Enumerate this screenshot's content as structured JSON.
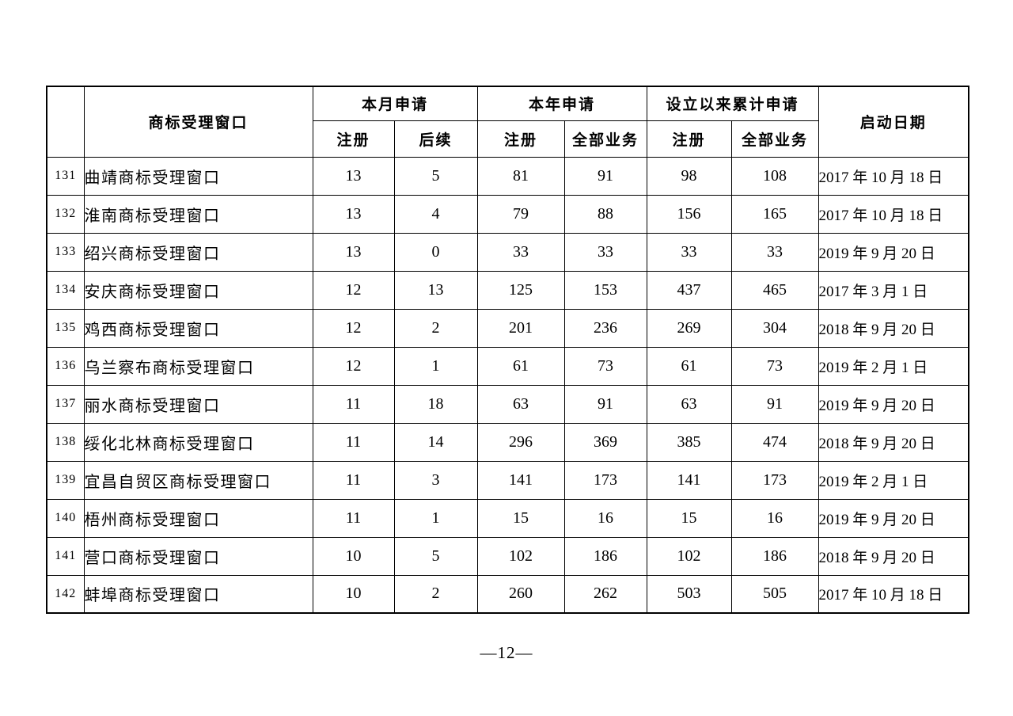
{
  "colors": {
    "background": "#ffffff",
    "border": "#000000",
    "text": "#000000"
  },
  "table": {
    "headers": {
      "window": "商标受理窗口",
      "month": "本月申请",
      "year": "本年申请",
      "cumulative": "设立以来累计申请",
      "start_date": "启动日期",
      "sub_register": "注册",
      "sub_follow": "后续",
      "sub_all": "全部业务"
    },
    "rows": [
      {
        "no": "131",
        "name": "曲靖商标受理窗口",
        "month_reg": "13",
        "month_follow": "5",
        "year_reg": "81",
        "year_all": "91",
        "cum_reg": "98",
        "cum_all": "108",
        "date": "2017 年 10 月 18 日"
      },
      {
        "no": "132",
        "name": "淮南商标受理窗口",
        "month_reg": "13",
        "month_follow": "4",
        "year_reg": "79",
        "year_all": "88",
        "cum_reg": "156",
        "cum_all": "165",
        "date": "2017 年 10 月 18 日"
      },
      {
        "no": "133",
        "name": "绍兴商标受理窗口",
        "month_reg": "13",
        "month_follow": "0",
        "year_reg": "33",
        "year_all": "33",
        "cum_reg": "33",
        "cum_all": "33",
        "date": "2019 年 9 月 20 日"
      },
      {
        "no": "134",
        "name": "安庆商标受理窗口",
        "month_reg": "12",
        "month_follow": "13",
        "year_reg": "125",
        "year_all": "153",
        "cum_reg": "437",
        "cum_all": "465",
        "date": "2017 年 3 月 1 日"
      },
      {
        "no": "135",
        "name": "鸡西商标受理窗口",
        "month_reg": "12",
        "month_follow": "2",
        "year_reg": "201",
        "year_all": "236",
        "cum_reg": "269",
        "cum_all": "304",
        "date": "2018 年 9 月 20 日"
      },
      {
        "no": "136",
        "name": "乌兰察布商标受理窗口",
        "month_reg": "12",
        "month_follow": "1",
        "year_reg": "61",
        "year_all": "73",
        "cum_reg": "61",
        "cum_all": "73",
        "date": "2019 年 2 月 1 日"
      },
      {
        "no": "137",
        "name": "丽水商标受理窗口",
        "month_reg": "11",
        "month_follow": "18",
        "year_reg": "63",
        "year_all": "91",
        "cum_reg": "63",
        "cum_all": "91",
        "date": "2019 年 9 月 20 日"
      },
      {
        "no": "138",
        "name": "绥化北林商标受理窗口",
        "month_reg": "11",
        "month_follow": "14",
        "year_reg": "296",
        "year_all": "369",
        "cum_reg": "385",
        "cum_all": "474",
        "date": "2018 年 9 月 20 日"
      },
      {
        "no": "139",
        "name": "宜昌自贸区商标受理窗口",
        "month_reg": "11",
        "month_follow": "3",
        "year_reg": "141",
        "year_all": "173",
        "cum_reg": "141",
        "cum_all": "173",
        "date": "2019 年 2 月 1 日"
      },
      {
        "no": "140",
        "name": "梧州商标受理窗口",
        "month_reg": "11",
        "month_follow": "1",
        "year_reg": "15",
        "year_all": "16",
        "cum_reg": "15",
        "cum_all": "16",
        "date": "2019 年 9 月 20 日"
      },
      {
        "no": "141",
        "name": "营口商标受理窗口",
        "month_reg": "10",
        "month_follow": "5",
        "year_reg": "102",
        "year_all": "186",
        "cum_reg": "102",
        "cum_all": "186",
        "date": "2018 年 9 月 20 日"
      },
      {
        "no": "142",
        "name": "蚌埠商标受理窗口",
        "month_reg": "10",
        "month_follow": "2",
        "year_reg": "260",
        "year_all": "262",
        "cum_reg": "503",
        "cum_all": "505",
        "date": "2017 年 10 月 18 日"
      }
    ]
  },
  "footer": {
    "page_number": "—12—"
  }
}
